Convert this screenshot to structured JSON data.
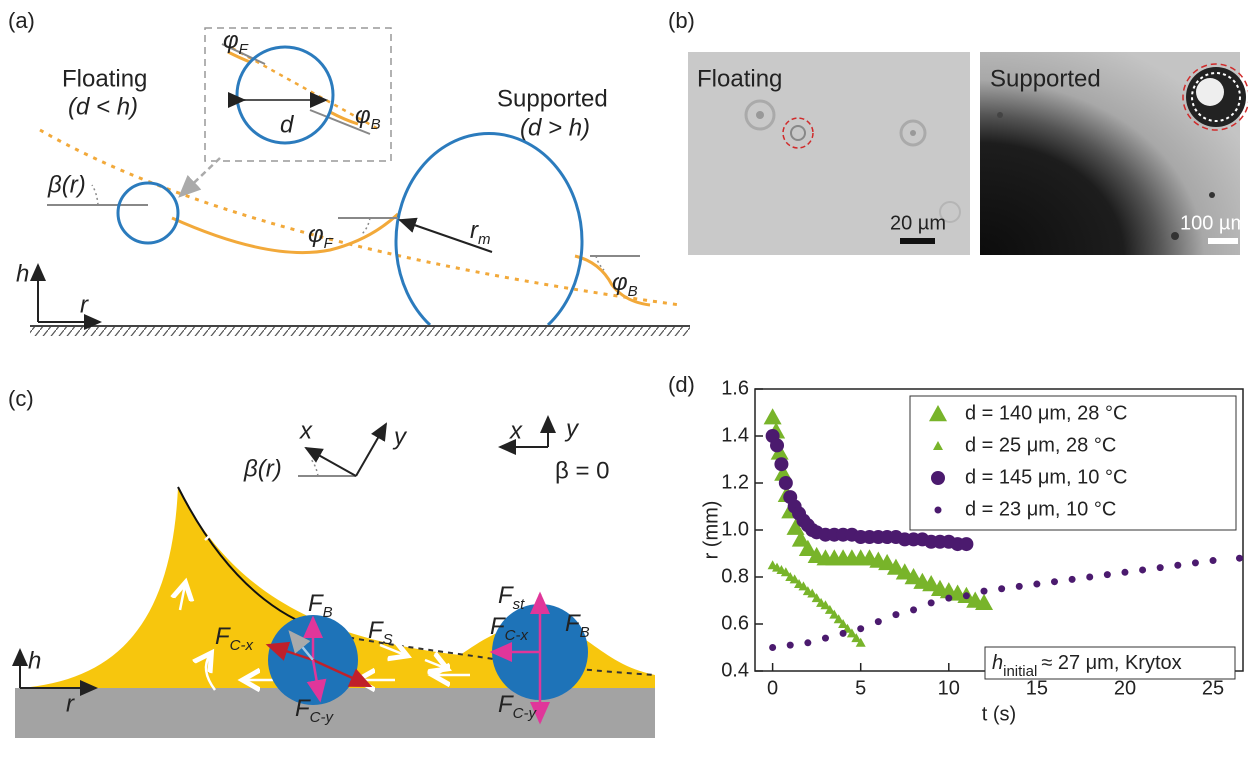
{
  "panel_a": {
    "label": "(a)",
    "floating": "Floating",
    "floating_condition": "(d < h)",
    "supported": "Supported",
    "supported_condition": "(d > h)",
    "inset": {
      "phi_f": "φ",
      "phi_f_sub": "F",
      "phi_b": "φ",
      "phi_b_sub": "B",
      "diameter": "d"
    },
    "beta": "β(r)",
    "phi_f": "φ",
    "phi_f_sub": "F",
    "radius": "r",
    "radius_sub": "m",
    "phi_b": "φ",
    "phi_b_sub": "B",
    "axis_h": "h",
    "axis_r": "r"
  },
  "panel_b": {
    "label": "(b)",
    "floating": "Floating",
    "supported": "Supported",
    "scale_floating": "20 µm",
    "scale_supported": "100 µm"
  },
  "panel_c": {
    "label": "(c)",
    "frame_tilted": {
      "x": "x",
      "y": "y",
      "beta": "β(r)"
    },
    "frame_flat": {
      "x": "x",
      "y": "y",
      "beta": "β = 0"
    },
    "forces_floating": [
      {
        "main": "F",
        "sub": "B"
      },
      {
        "main": "F",
        "sub": "C-x"
      },
      {
        "main": "F",
        "sub": "S"
      },
      {
        "main": "F",
        "sub": "C-y"
      }
    ],
    "forces_supported": [
      {
        "main": "F",
        "sub": "st"
      },
      {
        "main": "F",
        "sub": "B"
      },
      {
        "main": "F",
        "sub": "C-x"
      },
      {
        "main": "F",
        "sub": "C-y"
      }
    ],
    "axis_h": "h",
    "axis_r": "r"
  },
  "panel_d": {
    "label": "(d)",
    "annotation_main": "h",
    "annotation_sub": "initial",
    "annotation_rest": "≈ 27 μm, Krytox"
  },
  "chart_data": {
    "type": "scatter",
    "x_label": "t (s)",
    "y_label": "r (mm)",
    "xlim": [
      -1,
      26.7
    ],
    "ylim": [
      0.4,
      1.6
    ],
    "xticks": [
      0,
      5,
      10,
      15,
      20,
      25
    ],
    "yticks": [
      0.4,
      0.6,
      0.8,
      {
        "value": 1,
        "label": "1.0"
      },
      1.2,
      1.4,
      1.6
    ],
    "legend": "upper right",
    "series": [
      {
        "name": "d = 140 μm, 28 °C",
        "color": "#78b42a",
        "marker": "triangle",
        "marker_size": "large",
        "x": [
          0,
          0.2,
          0.4,
          0.6,
          0.8,
          1.0,
          1.3,
          1.6,
          2.0,
          2.5,
          3,
          3.5,
          4,
          4.5,
          5,
          5.5,
          6,
          6.5,
          7,
          7.5,
          8,
          8.5,
          9,
          9.5,
          10,
          10.5,
          11,
          11.5,
          12
        ],
        "values": [
          1.48,
          1.42,
          1.33,
          1.24,
          1.15,
          1.08,
          1.01,
          0.96,
          0.92,
          0.89,
          0.88,
          0.88,
          0.88,
          0.88,
          0.88,
          0.88,
          0.87,
          0.86,
          0.84,
          0.82,
          0.8,
          0.78,
          0.77,
          0.75,
          0.74,
          0.73,
          0.72,
          0.7,
          0.69
        ]
      },
      {
        "name": "d = 25 μm, 28 °C",
        "color": "#78b42a",
        "marker": "triangle",
        "marker_size": "small",
        "x": [
          0,
          0.25,
          0.5,
          0.75,
          1,
          1.25,
          1.5,
          1.75,
          2,
          2.25,
          2.5,
          2.75,
          3,
          3.25,
          3.5,
          3.75,
          4,
          4.25,
          4.5,
          4.75,
          5
        ],
        "values": [
          0.85,
          0.84,
          0.83,
          0.82,
          0.8,
          0.79,
          0.77,
          0.76,
          0.74,
          0.73,
          0.71,
          0.69,
          0.68,
          0.66,
          0.64,
          0.62,
          0.6,
          0.58,
          0.56,
          0.54,
          0.52
        ]
      },
      {
        "name": "d = 145 μm, 10 °C",
        "color": "#4b1a6e",
        "marker": "circle",
        "marker_size": "large",
        "x": [
          0,
          0.25,
          0.5,
          0.75,
          1,
          1.25,
          1.5,
          1.75,
          2,
          2.25,
          2.5,
          3,
          3.5,
          4,
          4.5,
          5,
          5.5,
          6,
          6.5,
          7,
          7.5,
          8,
          8.5,
          9,
          9.5,
          10,
          10.5,
          11
        ],
        "values": [
          1.4,
          1.36,
          1.28,
          1.2,
          1.14,
          1.1,
          1.07,
          1.04,
          1.02,
          1.0,
          0.99,
          0.98,
          0.98,
          0.98,
          0.98,
          0.97,
          0.97,
          0.97,
          0.97,
          0.97,
          0.96,
          0.96,
          0.96,
          0.95,
          0.95,
          0.95,
          0.94,
          0.94
        ]
      },
      {
        "name": "d = 23 μm, 10 °C",
        "color": "#4b1a6e",
        "marker": "circle",
        "marker_size": "small",
        "x": [
          0,
          1,
          2,
          3,
          4,
          5,
          6,
          7,
          8,
          9,
          10,
          11,
          12,
          13,
          14,
          15,
          16,
          17,
          18,
          19,
          20,
          21,
          22,
          23,
          24,
          25,
          26.5
        ],
        "values": [
          0.5,
          0.51,
          0.52,
          0.54,
          0.56,
          0.58,
          0.61,
          0.64,
          0.66,
          0.69,
          0.71,
          0.72,
          0.74,
          0.75,
          0.76,
          0.77,
          0.78,
          0.79,
          0.8,
          0.81,
          0.82,
          0.83,
          0.84,
          0.85,
          0.86,
          0.87,
          0.88
        ]
      }
    ]
  }
}
